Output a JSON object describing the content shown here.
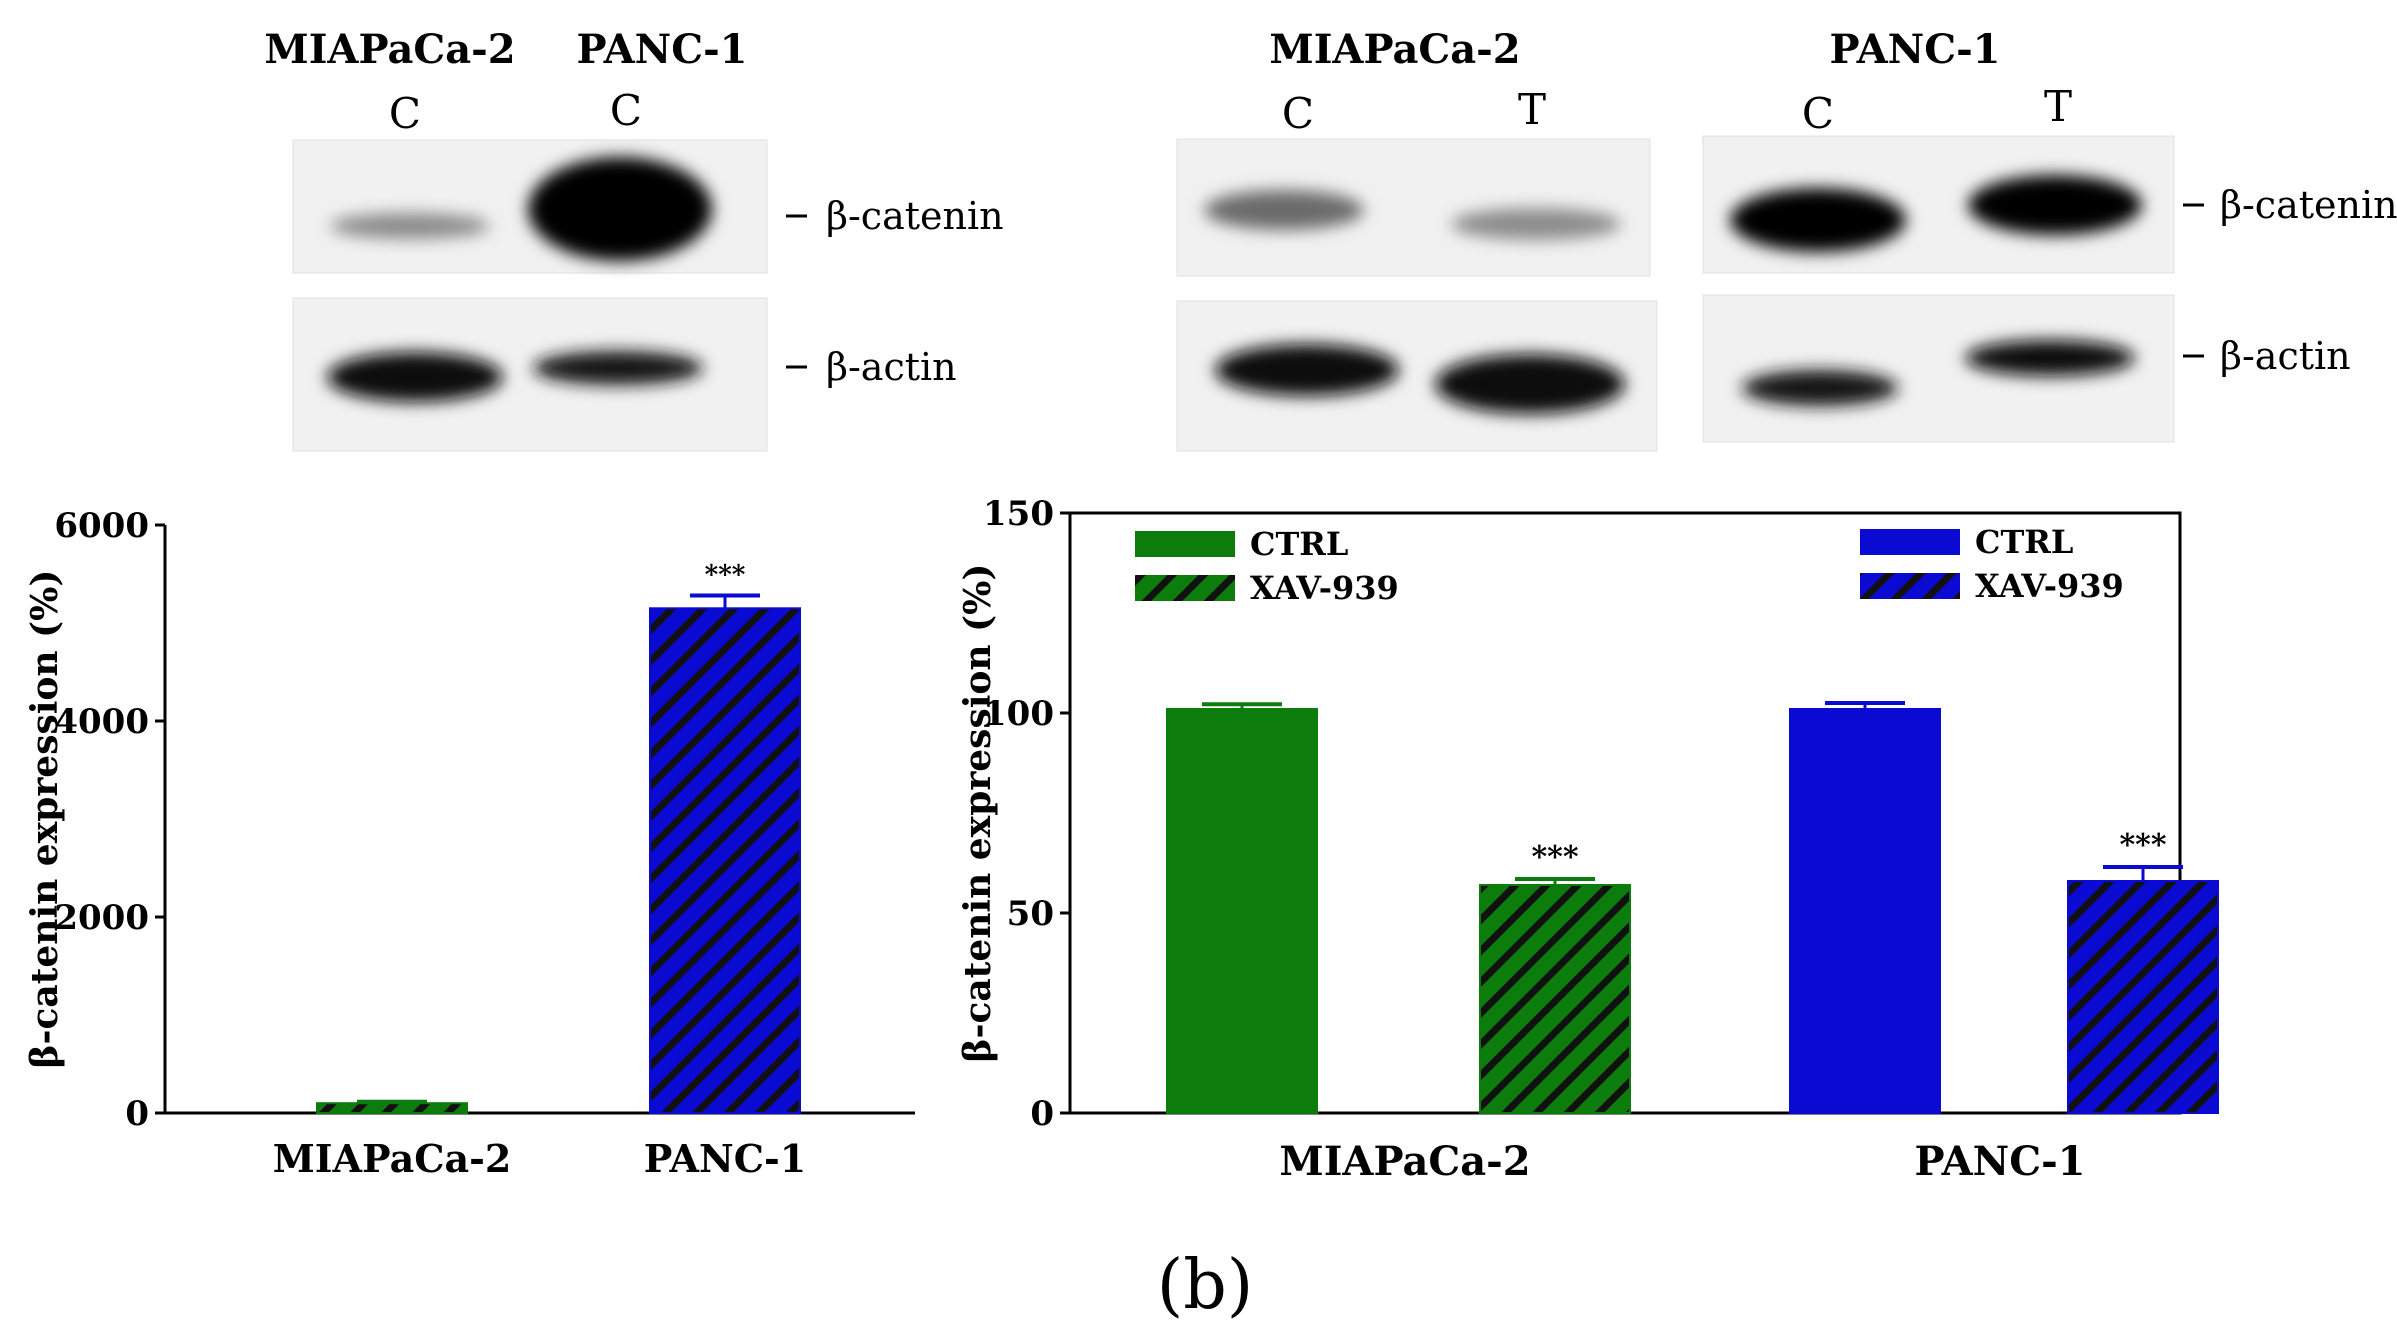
{
  "blots": {
    "left": {
      "cell_lines": [
        "MIAPaCa-2",
        "PANC-1"
      ],
      "lanes": [
        "C",
        "C"
      ],
      "bands": [
        "β-catenin",
        "β-actin"
      ]
    },
    "middle": {
      "cell_line": "MIAPaCa-2",
      "lanes": [
        "C",
        "T"
      ]
    },
    "right": {
      "cell_line": "PANC-1",
      "lanes": [
        "C",
        "T"
      ],
      "bands": [
        "β-catenin",
        "β-actin"
      ]
    }
  },
  "panel_label": "(b)",
  "colors": {
    "green": "#0c7d0c",
    "blue": "#0a0ad2",
    "hatch": "#111111",
    "axis": "#000000"
  },
  "chart_data": [
    {
      "type": "bar",
      "title": "",
      "xlabel": "",
      "ylabel": "β-catenin expression (%)",
      "ylim": [
        0,
        6000
      ],
      "yticks": [
        0,
        2000,
        4000,
        6000
      ],
      "categories": [
        "MIAPaCa-2",
        "PANC-1"
      ],
      "values": [
        100,
        5150
      ],
      "errors": [
        15,
        130
      ],
      "significance": [
        "",
        "***"
      ],
      "bar_colors": [
        "green",
        "blue"
      ],
      "hatched": [
        true,
        true
      ],
      "legend": "none"
    },
    {
      "type": "bar",
      "title": "",
      "xlabel": "",
      "ylabel": "β-catenin expression (%)",
      "ylim": [
        0,
        150
      ],
      "yticks": [
        0,
        50,
        100,
        150
      ],
      "categories": [
        "MIAPaCa-2",
        "PANC-1"
      ],
      "series": [
        {
          "name": "CTRL",
          "values": [
            101,
            101
          ],
          "errors": [
            1.2,
            1.5
          ],
          "significance": [
            "",
            ""
          ],
          "hatched": false
        },
        {
          "name": "XAV-939",
          "values": [
            57,
            58
          ],
          "errors": [
            1.5,
            3.5
          ],
          "significance": [
            "***",
            "***"
          ],
          "hatched": true
        }
      ],
      "group_colors": [
        "green",
        "blue"
      ],
      "legend_entries": [
        {
          "label": "CTRL",
          "color": "green",
          "hatched": false
        },
        {
          "label": "XAV-939",
          "color": "green",
          "hatched": true
        },
        {
          "label": "CTRL",
          "color": "blue",
          "hatched": false
        },
        {
          "label": "XAV-939",
          "color": "blue",
          "hatched": true
        }
      ],
      "legend": "top, inside plot"
    }
  ]
}
